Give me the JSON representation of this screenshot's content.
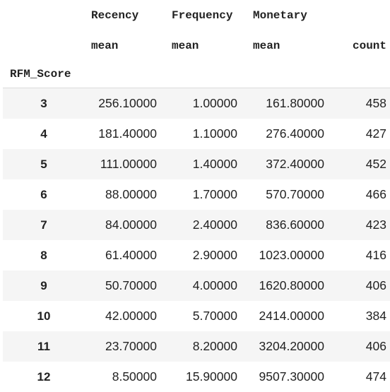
{
  "table": {
    "columns_level0": [
      "Recency",
      "Frequency",
      "Monetary",
      ""
    ],
    "columns_level1": [
      "mean",
      "mean",
      "mean",
      "count"
    ],
    "index_name": "RFM_Score",
    "rows": [
      {
        "idx": "3",
        "recency": "256.10000",
        "frequency": "1.00000",
        "monetary": "161.80000",
        "count": "458"
      },
      {
        "idx": "4",
        "recency": "181.40000",
        "frequency": "1.10000",
        "monetary": "276.40000",
        "count": "427"
      },
      {
        "idx": "5",
        "recency": "111.00000",
        "frequency": "1.40000",
        "monetary": "372.40000",
        "count": "452"
      },
      {
        "idx": "6",
        "recency": "88.00000",
        "frequency": "1.70000",
        "monetary": "570.70000",
        "count": "466"
      },
      {
        "idx": "7",
        "recency": "84.00000",
        "frequency": "2.40000",
        "monetary": "836.60000",
        "count": "423"
      },
      {
        "idx": "8",
        "recency": "61.40000",
        "frequency": "2.90000",
        "monetary": "1023.00000",
        "count": "416"
      },
      {
        "idx": "9",
        "recency": "50.70000",
        "frequency": "4.00000",
        "monetary": "1620.80000",
        "count": "406"
      },
      {
        "idx": "10",
        "recency": "42.00000",
        "frequency": "5.70000",
        "monetary": "2414.00000",
        "count": "384"
      },
      {
        "idx": "11",
        "recency": "23.70000",
        "frequency": "8.20000",
        "monetary": "3204.20000",
        "count": "406"
      },
      {
        "idx": "12",
        "recency": "8.50000",
        "frequency": "15.90000",
        "monetary": "9507.30000",
        "count": "474"
      }
    ]
  }
}
